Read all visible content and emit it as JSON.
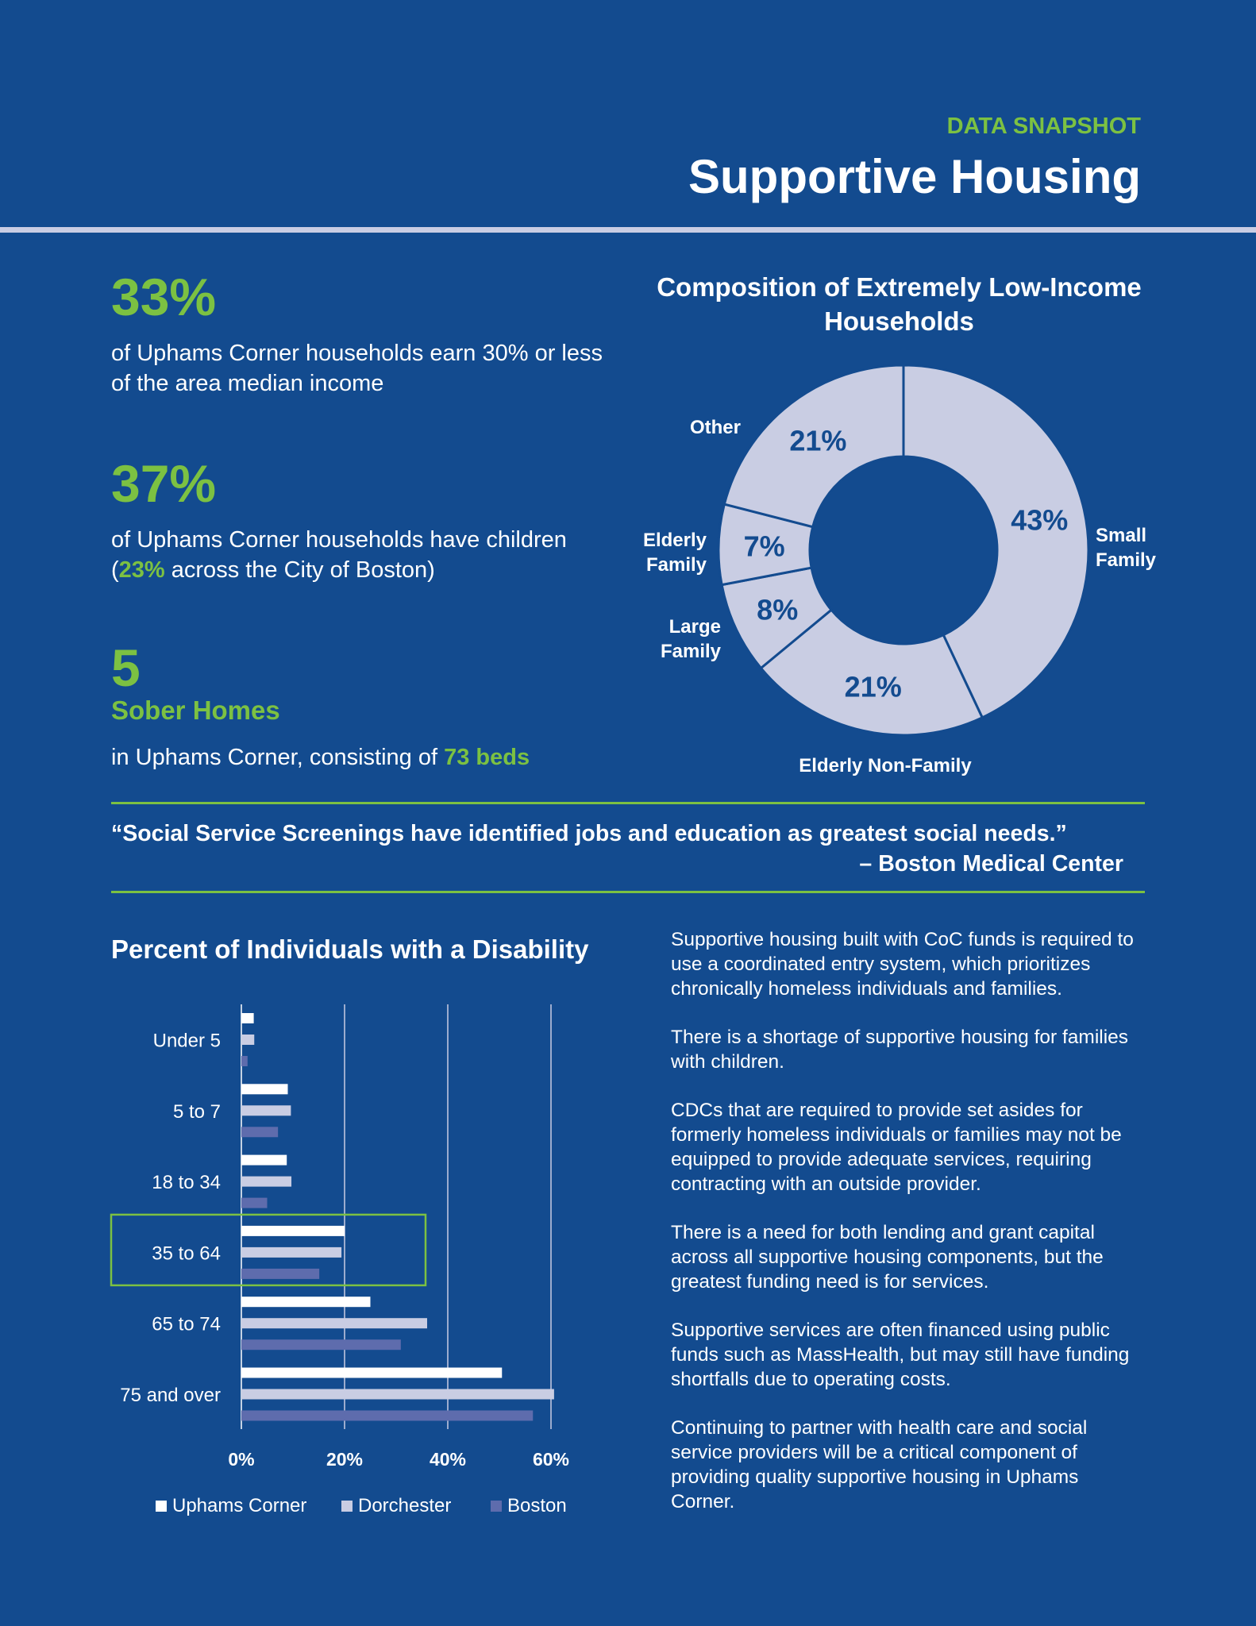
{
  "header": {
    "eyebrow": "DATA SNAPSHOT",
    "title": "Supportive Housing"
  },
  "colors": {
    "background": "#134b8f",
    "accent_green": "#7cc142",
    "light_lavender": "#c9cde3",
    "boston_purple": "#5e6cad"
  },
  "stats": [
    {
      "value": "33%",
      "description": "of Uphams Corner households earn 30% or less of the area median income"
    },
    {
      "value": "37%",
      "description_before": "of Uphams Corner households have children (",
      "highlight": "23%",
      "description_after": " across the City of Boston)"
    },
    {
      "value": "5",
      "subtitle": "Sober Homes",
      "description_before": "in Uphams Corner, consisting of ",
      "highlight": "73 beds"
    }
  ],
  "quote": {
    "text": "“Social Service Screenings have identified jobs and education as greatest social needs.”",
    "source": "– Boston Medical Center"
  },
  "notes": [
    "Supportive housing built with CoC funds is required to use a coordinated entry system, which prioritizes chronically homeless individuals and families.",
    "There is a shortage of supportive housing for families with children.",
    "CDCs that are required to provide set asides for formerly homeless individuals or families may not be equipped to provide adequate services, requiring contracting with an outside provider.",
    "There is a need for both lending and grant capital across all supportive housing components, but the greatest funding need is for services.",
    "Supportive services are often financed using public funds such as MassHealth, but may still have funding shortfalls due to operating costs.",
    "Continuing to partner with health care and social service providers will be a critical component of providing quality supportive housing in Uphams Corner."
  ],
  "chart_data": [
    {
      "type": "pie",
      "title": "Composition of Extremely Low-Income Households",
      "donut": true,
      "slices": [
        {
          "label": "Small Family",
          "value": 43,
          "value_label": "43%"
        },
        {
          "label": "Elderly Non-Family",
          "value": 21,
          "value_label": "21%"
        },
        {
          "label": "Large Family",
          "value": 8,
          "value_label": "8%"
        },
        {
          "label": "Elderly Family",
          "value": 7,
          "value_label": "7%"
        },
        {
          "label": "Other",
          "value": 21,
          "value_label": "21%"
        }
      ]
    },
    {
      "type": "bar",
      "orientation": "horizontal",
      "title": "Percent of Individuals with a Disability",
      "categories": [
        "Under 5",
        "5 to 7",
        "18 to 34",
        "35 to 64",
        "65 to 74",
        "75 and over"
      ],
      "series": [
        {
          "name": "Uphams Corner",
          "color": "#ffffff",
          "values": [
            2.4,
            9,
            8.8,
            20,
            25,
            50.5
          ]
        },
        {
          "name": "Dorchester",
          "color": "#c9cde3",
          "values": [
            2.5,
            9.6,
            9.7,
            19.4,
            36,
            60.6
          ]
        },
        {
          "name": "Boston",
          "color": "#5e6cad",
          "values": [
            1.2,
            7.1,
            5,
            15.1,
            30.9,
            56.5
          ]
        }
      ],
      "xlim": [
        0,
        60
      ],
      "xticks": [
        0,
        20,
        40,
        60
      ],
      "xtick_labels": [
        "0%",
        "20%",
        "40%",
        "60%"
      ],
      "highlighted_category": "35 to 64",
      "legend_position": "bottom"
    }
  ]
}
